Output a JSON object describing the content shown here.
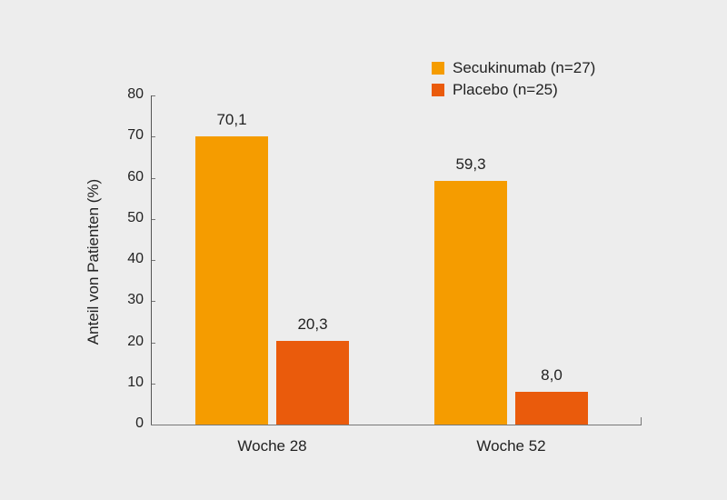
{
  "chart_data": {
    "type": "bar",
    "title": "",
    "xlabel": "",
    "ylabel": "Anteil von Patienten (%)",
    "ylim": [
      0,
      80
    ],
    "yticks": [
      0,
      10,
      20,
      30,
      40,
      50,
      60,
      70,
      80
    ],
    "categories": [
      "Woche 28",
      "Woche 52"
    ],
    "series": [
      {
        "name": "Secukinumab (n=27)",
        "color": "#f59c00",
        "values": [
          70.1,
          59.3
        ],
        "labels": [
          "70,1",
          "59,3"
        ]
      },
      {
        "name": "Placebo (n=25)",
        "color": "#ea5b0c",
        "values": [
          20.3,
          8.0
        ],
        "labels": [
          "20,3",
          "8,0"
        ]
      }
    ],
    "grid": false,
    "legend_position": "top-right"
  }
}
